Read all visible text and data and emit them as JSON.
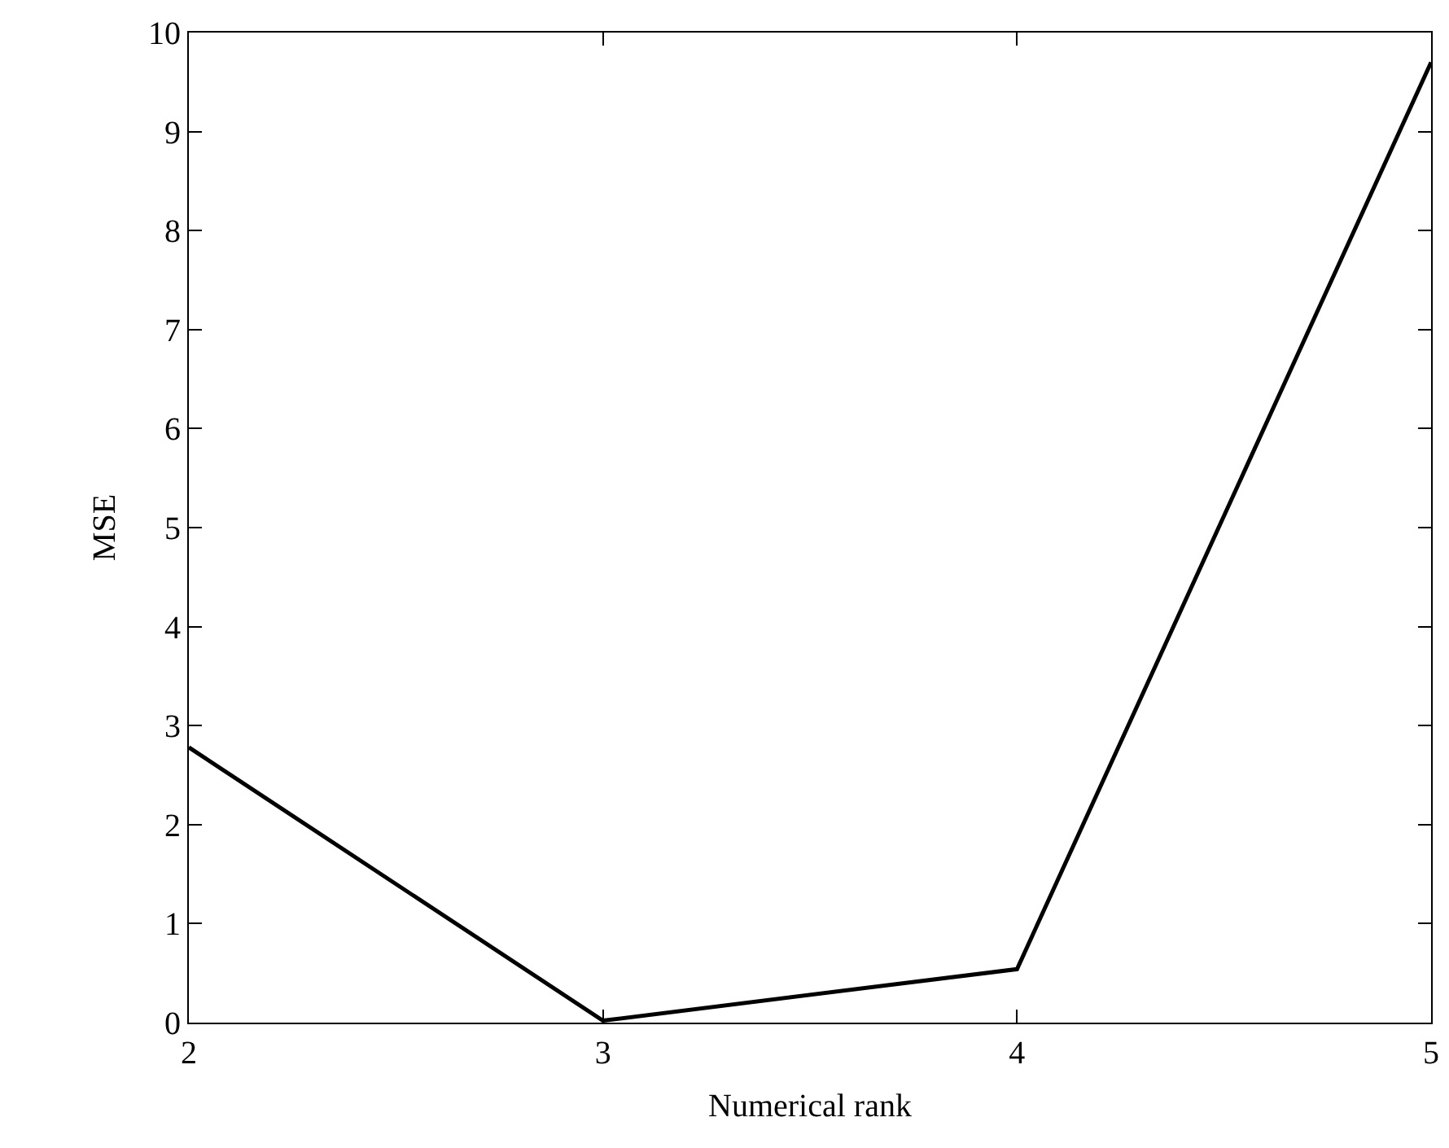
{
  "chart_data": {
    "type": "line",
    "xlabel": "Numerical rank",
    "ylabel": "MSE",
    "x": [
      2,
      3,
      4,
      5
    ],
    "series": [
      {
        "color": "#000000",
        "values": [
          2.78,
          0.02,
          0.54,
          9.7
        ]
      }
    ],
    "xlim": [
      2,
      5
    ],
    "xticks": [
      2,
      3,
      4,
      5
    ],
    "ylim": [
      0,
      10
    ],
    "yticks": [
      0,
      1,
      2,
      3,
      4,
      5,
      6,
      7,
      8,
      9,
      10
    ],
    "grid": false,
    "marker": "none",
    "line_style": "solid"
  }
}
